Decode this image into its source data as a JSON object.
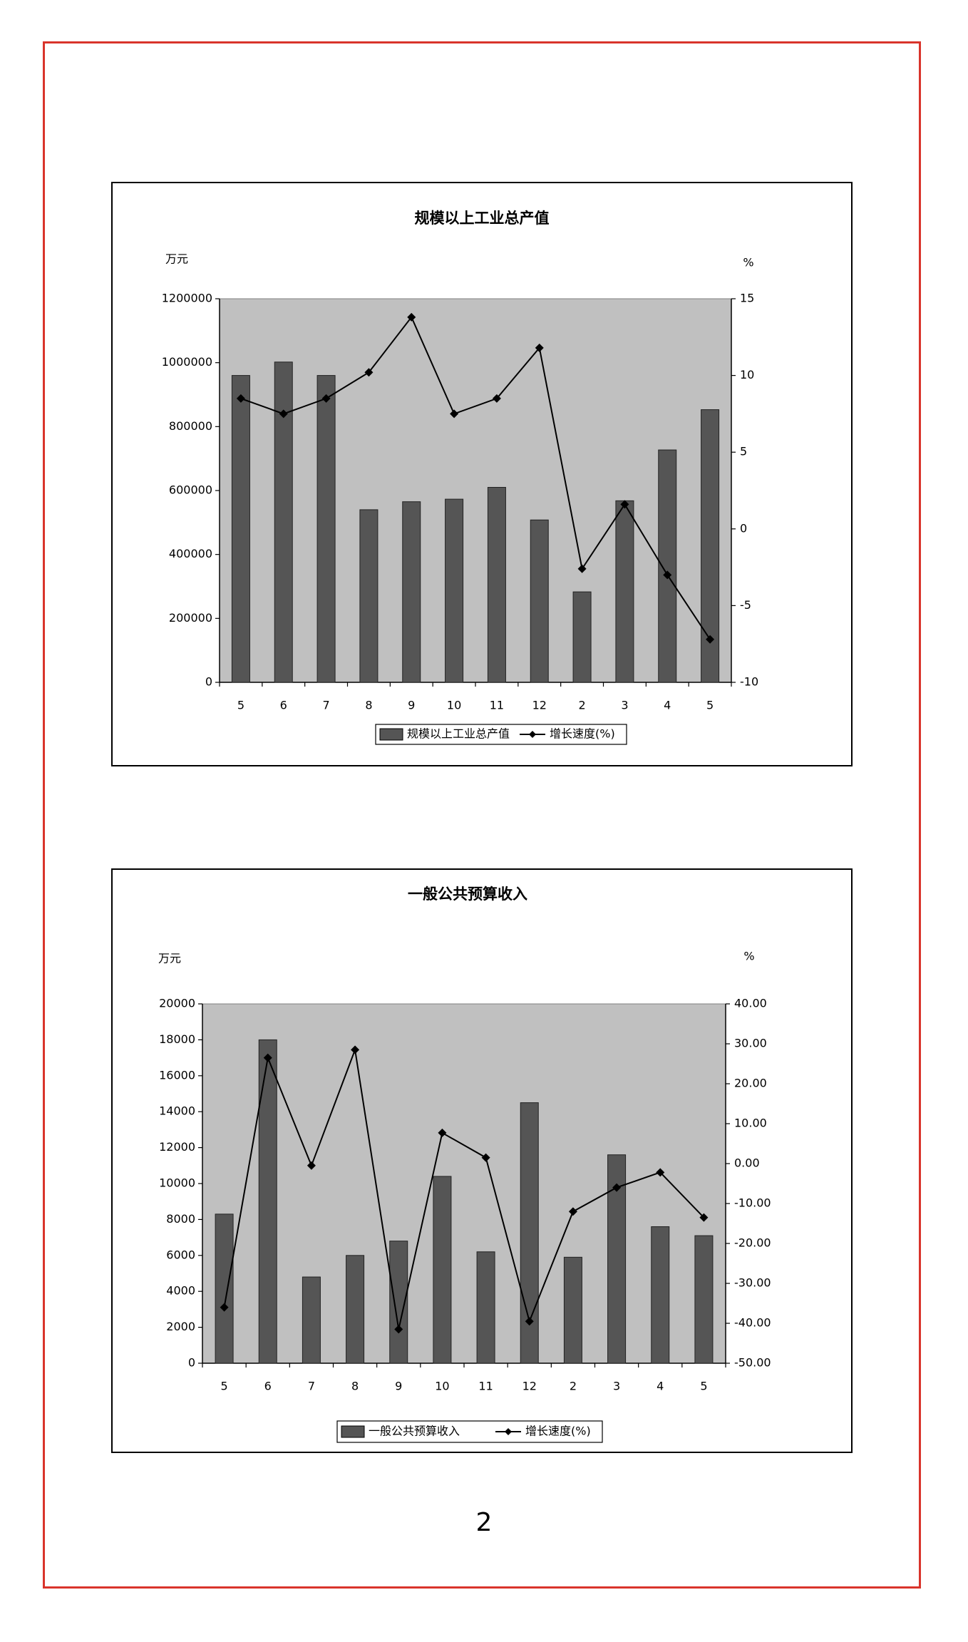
{
  "page": {
    "number": "2"
  },
  "colors": {
    "border": "#d9342b",
    "plot_bg": "#c0c0c0",
    "bar": "#555555",
    "line": "#000000"
  },
  "chart_data": [
    {
      "type": "bar",
      "title": "规模以上工业总产值",
      "y_unit": "万元",
      "y2_unit": "%",
      "categories": [
        "5",
        "6",
        "7",
        "8",
        "9",
        "10",
        "11",
        "12",
        "2",
        "3",
        "4",
        "5"
      ],
      "ylim": [
        0,
        1200000
      ],
      "yticks": [
        "0",
        "200000",
        "400000",
        "600000",
        "800000",
        "1000000",
        "1200000"
      ],
      "y2lim": [
        -10,
        15
      ],
      "y2ticks": [
        "-10",
        "-5",
        "0",
        "5",
        "10",
        "15"
      ],
      "series": [
        {
          "name": "规模以上工业总产值",
          "kind": "bar",
          "axis": "left",
          "values": [
            960000,
            1002000,
            960000,
            540000,
            565000,
            573000,
            610000,
            508000,
            283000,
            568000,
            727000,
            853000
          ]
        },
        {
          "name": "增长速度(%)",
          "kind": "line",
          "axis": "right",
          "values": [
            8.5,
            7.5,
            8.5,
            10.2,
            13.8,
            7.5,
            8.5,
            11.8,
            -2.6,
            1.6,
            -3.0,
            -7.2
          ]
        }
      ],
      "legend": "bottom",
      "grid": false
    },
    {
      "type": "bar",
      "title": "一般公共预算收入",
      "y_unit": "万元",
      "y2_unit": "%",
      "categories": [
        "5",
        "6",
        "7",
        "8",
        "9",
        "10",
        "11",
        "12",
        "2",
        "3",
        "4",
        "5"
      ],
      "ylim": [
        0,
        20000
      ],
      "yticks": [
        "0",
        "2000",
        "4000",
        "6000",
        "8000",
        "10000",
        "12000",
        "14000",
        "16000",
        "18000",
        "20000"
      ],
      "y2lim": [
        -50,
        40
      ],
      "y2ticks": [
        "-50.00",
        "-40.00",
        "-30.00",
        "-20.00",
        "-10.00",
        "0.00",
        "10.00",
        "20.00",
        "30.00",
        "40.00"
      ],
      "series": [
        {
          "name": "一般公共预算收入",
          "kind": "bar",
          "axis": "left",
          "values": [
            8300,
            18000,
            4800,
            6000,
            6800,
            10400,
            6200,
            14500,
            5900,
            11600,
            7600,
            7100
          ]
        },
        {
          "name": "增长速度(%)",
          "kind": "line",
          "axis": "right",
          "values": [
            -36.0,
            26.5,
            -0.5,
            28.5,
            -41.5,
            7.7,
            1.5,
            -39.5,
            -12.0,
            -6.0,
            -2.2,
            -13.5
          ]
        }
      ],
      "legend": "bottom",
      "grid": false
    }
  ]
}
